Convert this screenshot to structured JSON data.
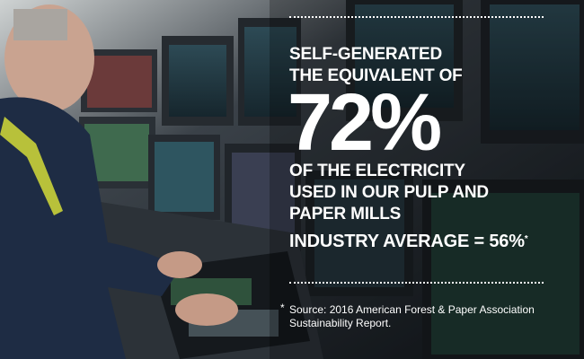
{
  "headline": {
    "lines": [
      "SELF-GENERATED",
      "THE EQUIVALENT OF"
    ]
  },
  "stat": "72%",
  "description": {
    "lines": [
      "OF THE ELECTRICITY",
      "USED IN OUR PULP AND",
      "PAPER MILLS"
    ]
  },
  "industry_average": {
    "text": "INDUSTRY AVERAGE = 56%",
    "marker": "*"
  },
  "footnote": {
    "marker": "*",
    "lines": [
      "Source: 2016 American Forest & Paper Association",
      "Sustainability Report."
    ]
  }
}
